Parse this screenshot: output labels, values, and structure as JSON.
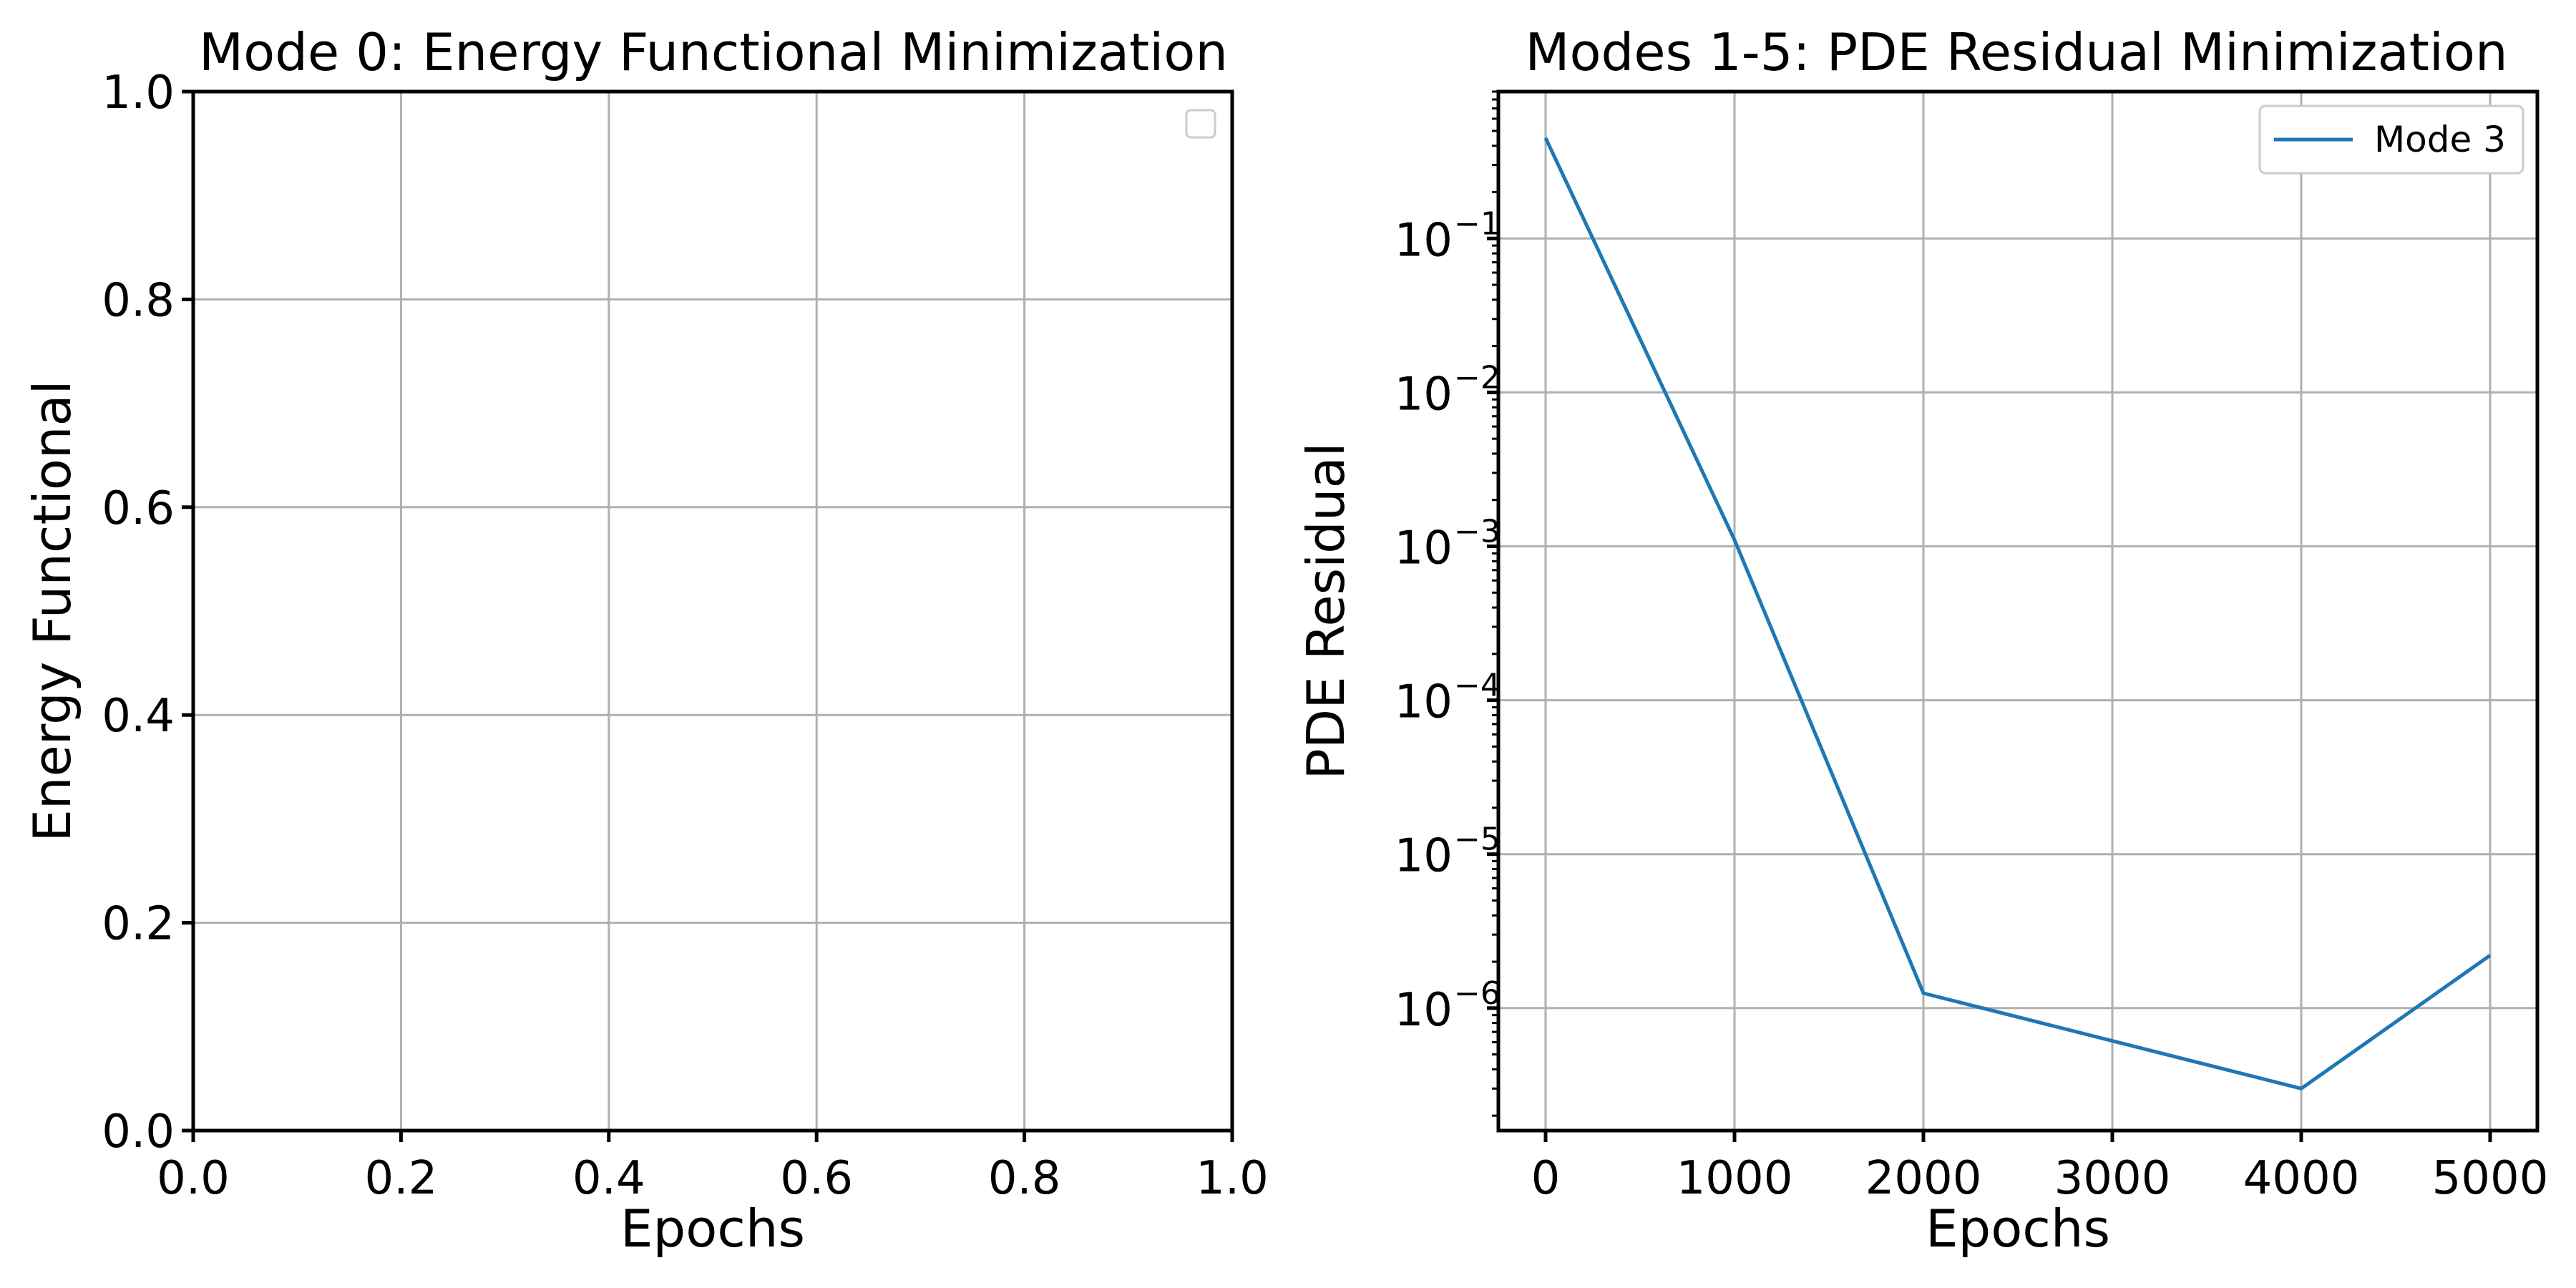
{
  "figure": {
    "panels": [
      {
        "title": "Mode 0: Energy Functional Minimization",
        "xlabel": "Epochs",
        "ylabel": "Energy Functional",
        "xticks": [
          "0.0",
          "0.2",
          "0.4",
          "0.6",
          "0.8",
          "1.0"
        ],
        "yticks": [
          "0.0",
          "0.2",
          "0.4",
          "0.6",
          "0.8",
          "1.0"
        ]
      },
      {
        "title": "Modes 1-5: PDE Residual Minimization",
        "xlabel": "Epochs",
        "ylabel": "PDE Residual",
        "xticks": [
          "0",
          "1000",
          "2000",
          "3000",
          "4000",
          "5000"
        ],
        "ytick_base": "10",
        "yticks": [
          "−1",
          "−2",
          "−3",
          "−4",
          "−5",
          "−6"
        ]
      }
    ]
  },
  "chart_data": [
    {
      "type": "line",
      "title": "Mode 0: Energy Functional Minimization",
      "xlabel": "Epochs",
      "ylabel": "Energy Functional",
      "xlim": [
        0,
        1
      ],
      "ylim": [
        0,
        1
      ],
      "series": [],
      "grid": true,
      "legend": "top-right (empty)"
    },
    {
      "type": "line",
      "title": "Modes 1-5: PDE Residual Minimization",
      "xlabel": "Epochs",
      "ylabel": "PDE Residual",
      "yscale": "log",
      "xlim": [
        -250,
        5250
      ],
      "ylim": [
        1.6e-07,
        0.9
      ],
      "x": [
        0,
        1000,
        2000,
        4000,
        5000
      ],
      "series": [
        {
          "name": "Mode 3",
          "color": "#1f77b4",
          "values": [
            0.45,
            0.0011,
            1.25e-06,
            3e-07,
            2.2e-06
          ]
        }
      ],
      "grid": true,
      "legend": "top-right"
    }
  ]
}
